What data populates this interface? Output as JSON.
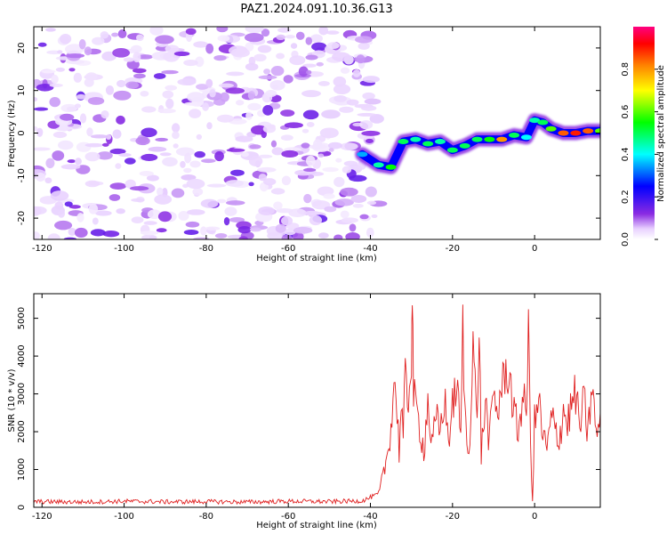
{
  "figure_title": "PAZ1.2024.091.10.36.G13",
  "chart_data": [
    {
      "type": "heatmap",
      "xlabel": "Height of straight line (km)",
      "ylabel": "Frequency (Hz)",
      "xlim": [
        -122,
        16
      ],
      "ylim": [
        -25,
        25
      ],
      "xticks": [
        -120,
        -100,
        -80,
        -60,
        -40,
        -20,
        0
      ],
      "yticks": [
        -20,
        -10,
        0,
        10,
        20
      ],
      "colorbar": {
        "label": "Normalized spectral amplitude",
        "range": [
          0.0,
          1.0
        ],
        "ticks": [
          0.0,
          0.2,
          0.4,
          0.6,
          0.8
        ],
        "colormap": [
          "#ffffff",
          "#e8d0ff",
          "#8a2be2",
          "#0000ff",
          "#00ffff",
          "#00ff00",
          "#ffff00",
          "#ff8000",
          "#ff0000",
          "#ff0080"
        ]
      },
      "noise_region_x": [
        -122,
        -38
      ],
      "ridge": {
        "x": [
          -42,
          -38,
          -35,
          -32,
          -29,
          -26,
          -23,
          -20,
          -17,
          -14,
          -11,
          -8,
          -5,
          -2,
          0,
          2,
          4,
          7,
          10,
          13,
          16
        ],
        "freq": [
          -5,
          -7.5,
          -8,
          -2,
          -1.5,
          -2.5,
          -2,
          -4,
          -3,
          -1.5,
          -1.5,
          -1.5,
          -0.5,
          -1,
          3,
          2.5,
          1,
          0,
          0,
          0.5,
          0.5
        ],
        "amplitude": [
          0.35,
          0.45,
          0.55,
          0.5,
          0.45,
          0.5,
          0.45,
          0.5,
          0.5,
          0.5,
          0.55,
          0.8,
          0.5,
          0.4,
          0.45,
          0.5,
          0.6,
          0.85,
          0.9,
          0.85,
          0.6
        ]
      }
    },
    {
      "type": "line",
      "xlabel": "Height of straight line (km)",
      "ylabel": "SNR (10 * v/v)",
      "xlim": [
        -122,
        16
      ],
      "ylim": [
        0,
        5650
      ],
      "xticks": [
        -120,
        -100,
        -80,
        -60,
        -40,
        -20,
        0
      ],
      "yticks": [
        0,
        1000,
        2000,
        3000,
        4000,
        5000
      ],
      "series": [
        {
          "color": "#e02020",
          "x": [
            -122,
            -110,
            -100,
            -90,
            -80,
            -70,
            -60,
            -50,
            -42,
            -38,
            -37,
            -36,
            -35,
            -34,
            -33,
            -32.5,
            -32,
            -31.5,
            -31,
            -30.5,
            -30,
            -29.8,
            -29.5,
            -29,
            -28,
            -27,
            -26,
            -25,
            -24,
            -23,
            -22,
            -21,
            -20,
            -19,
            -18,
            -17.5,
            -17,
            -16,
            -15,
            -14,
            -13.5,
            -13,
            -12,
            -11,
            -10,
            -9,
            -8,
            -7,
            -6,
            -5,
            -4,
            -3,
            -2,
            -1.5,
            -1,
            -0.5,
            0,
            1,
            2,
            3,
            4,
            5,
            6,
            7,
            8,
            9,
            10,
            11,
            12,
            13,
            14,
            15,
            16
          ],
          "y": [
            150,
            140,
            160,
            145,
            150,
            140,
            160,
            150,
            170,
            350,
            800,
            1300,
            2200,
            3450,
            1500,
            2800,
            1800,
            3500,
            2500,
            3300,
            4000,
            5650,
            3000,
            2600,
            2200,
            1500,
            2800,
            1600,
            2300,
            2000,
            2900,
            1800,
            2600,
            3300,
            1800,
            4900,
            2400,
            1300,
            4600,
            2000,
            4950,
            1400,
            2800,
            1700,
            3000,
            2500,
            3200,
            3600,
            3400,
            2400,
            2000,
            2900,
            2500,
            4750,
            1700,
            180,
            2200,
            2800,
            1900,
            1500,
            2300,
            2100,
            1800,
            2600,
            2200,
            2700,
            3000,
            2100,
            2800,
            1900,
            3300,
            1800,
            2500
          ]
        }
      ]
    }
  ]
}
